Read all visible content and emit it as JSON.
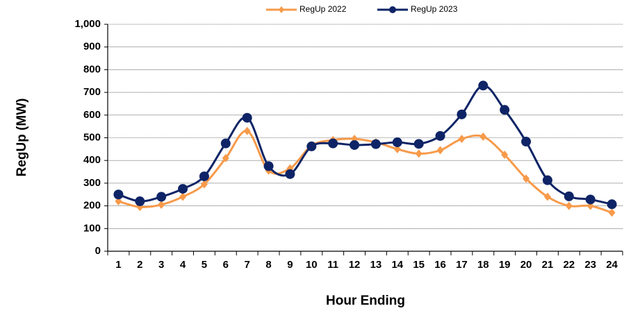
{
  "chart_data": {
    "type": "line",
    "categories": [
      "1",
      "2",
      "3",
      "4",
      "5",
      "6",
      "7",
      "8",
      "9",
      "10",
      "11",
      "12",
      "13",
      "14",
      "15",
      "16",
      "17",
      "18",
      "19",
      "20",
      "21",
      "22",
      "23",
      "24"
    ],
    "series": [
      {
        "name": "RegUp 2022",
        "color": "#f79a4a",
        "marker": "diamond",
        "values": [
          220,
          195,
          205,
          240,
          295,
          410,
          530,
          355,
          365,
          465,
          490,
          495,
          480,
          450,
          430,
          445,
          495,
          505,
          425,
          320,
          240,
          200,
          200,
          170
        ]
      },
      {
        "name": "RegUp 2023",
        "color": "#0e2466",
        "marker": "circle",
        "values": [
          250,
          220,
          240,
          275,
          330,
          475,
          588,
          375,
          340,
          462,
          475,
          468,
          472,
          480,
          473,
          508,
          603,
          730,
          623,
          483,
          313,
          242,
          228,
          207
        ]
      }
    ],
    "ylim": [
      0,
      1000
    ],
    "yticks": [
      0,
      100,
      200,
      300,
      400,
      500,
      600,
      700,
      800,
      900,
      {
        "value": 1000,
        "label": "1,000"
      }
    ],
    "ylabel": "RegUp (MW)",
    "xlabel": "Hour Ending",
    "grid": true,
    "smooth": true,
    "legend": "top"
  }
}
